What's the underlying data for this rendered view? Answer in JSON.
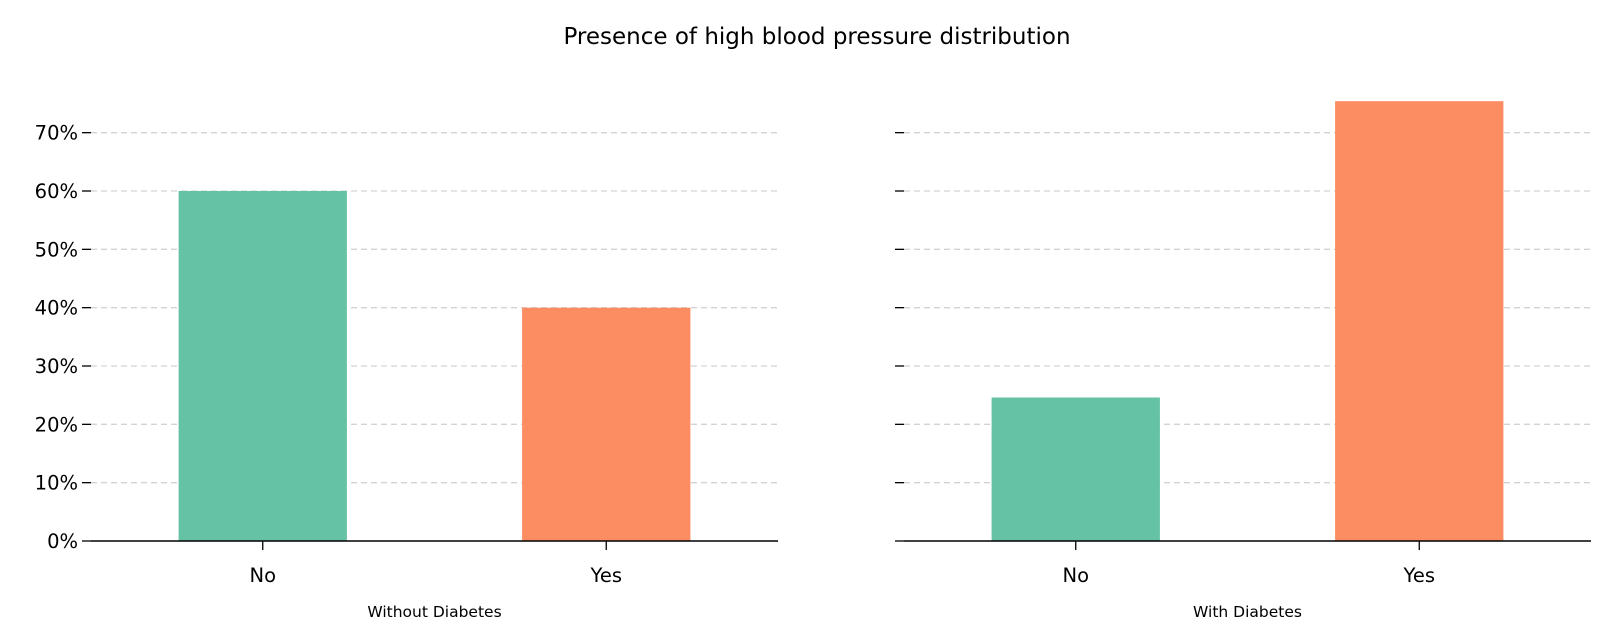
{
  "title": "Presence of high blood pressure distribution",
  "colors": {
    "no": "#66c2a5",
    "yes": "#fc8d62",
    "grid": "#d3d3d3",
    "axis": "#000000"
  },
  "chart_data": [
    {
      "type": "bar",
      "title": "",
      "xlabel": "Without Diabetes",
      "ylabel": "",
      "categories": [
        "No",
        "Yes"
      ],
      "values": [
        60.0,
        40.0
      ],
      "ylim": [
        0,
        75.6
      ],
      "yticks": [
        "0%",
        "10%",
        "20%",
        "30%",
        "40%",
        "50%",
        "60%",
        "70%"
      ],
      "grid": "y, dashed",
      "show_ytick_labels": true
    },
    {
      "type": "bar",
      "title": "",
      "xlabel": "With Diabetes",
      "ylabel": "",
      "categories": [
        "No",
        "Yes"
      ],
      "values": [
        24.6,
        75.4
      ],
      "ylim": [
        0,
        75.6
      ],
      "yticks": [
        "0%",
        "10%",
        "20%",
        "30%",
        "40%",
        "50%",
        "60%",
        "70%"
      ],
      "grid": "y, dashed",
      "show_ytick_labels": false
    }
  ]
}
